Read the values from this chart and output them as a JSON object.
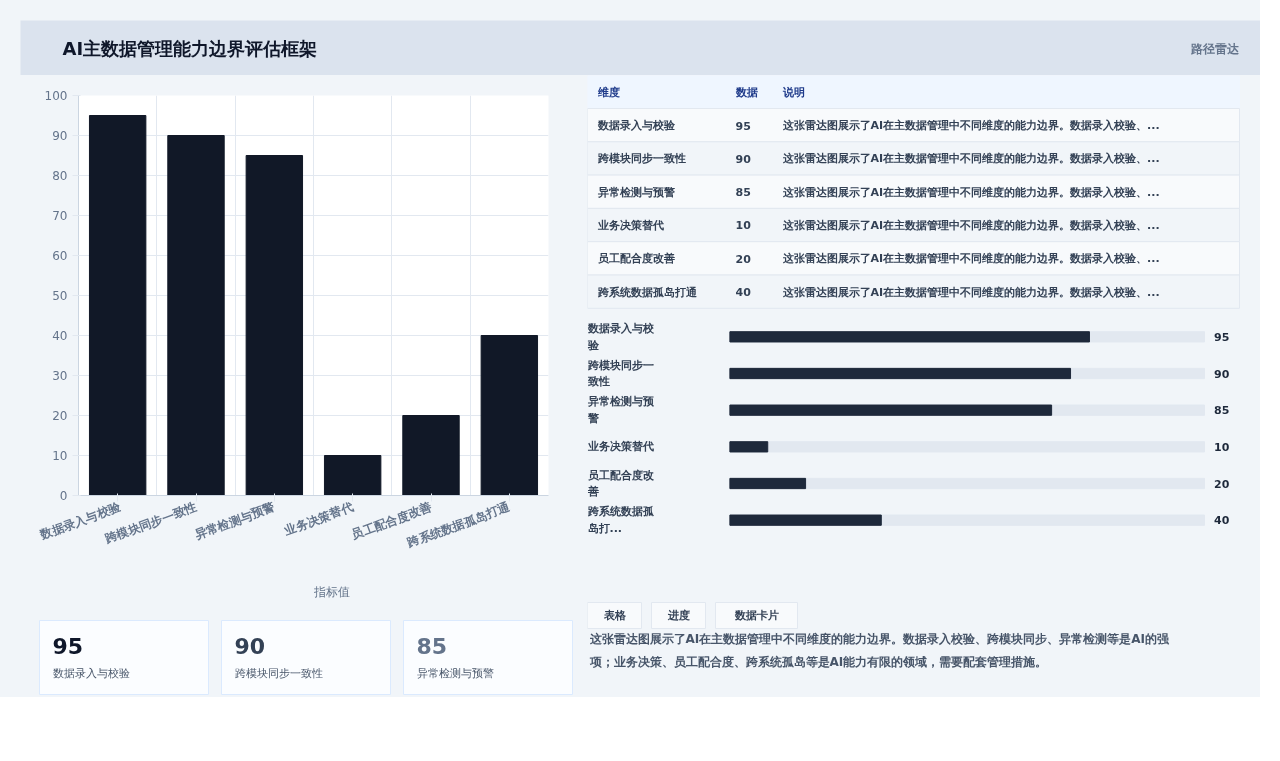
{
  "chart_data": [
    {
      "type": "other",
      "title": "AI主数据管理能力边界评估框架",
      "subtitle": "路径雷达"
    },
    {
      "type": "bar",
      "categories": [
        "数据录入与校验",
        "跨模块同步一致性",
        "异常检测与预警",
        "业务决策替代",
        "员工配合度改善",
        "跨系统数据孤岛打通"
      ],
      "series": [
        {
          "name": "指标值",
          "color": "#111827",
          "values": [
            95,
            90,
            85,
            10,
            20,
            40
          ]
        }
      ],
      "ylim": [
        0,
        100
      ],
      "yticks": [
        0,
        10,
        20,
        30,
        40,
        50,
        60,
        70,
        80,
        90,
        100
      ],
      "grid": true,
      "legend": "bottom"
    },
    {
      "type": "other",
      "categories": [
        "数据录入与校验",
        "跨模块同步一致性",
        "异常检测与预警",
        "业务决策替代",
        "员工配合度改善",
        "跨系统数据孤岛打通"
      ],
      "values": [
        95,
        90,
        85,
        10,
        20,
        40
      ],
      "data_labels": true,
      "annotations": [
        "维度",
        "数据",
        "说明",
        "这张雷达图展示了AI在主数据管理中不同维度的能力边界。数据录入校验、...",
        "这张雷达图展示了AI在主数据管理中不同维度的能力边界。数据录入校验、...",
        "这张雷达图展示了AI在主数据管理中不同维度的能力边界。数据录入校验、...",
        "这张雷达图展示了AI在主数据管理中不同维度的能力边界。数据录入校验、...",
        "这张雷达图展示了AI在主数据管理中不同维度的能力边界。数据录入校验、...",
        "这张雷达图展示了AI在主数据管理中不同维度的能力边界。数据录入校验、..."
      ]
    },
    {
      "type": "bar",
      "orientation": "horizontal",
      "categories": [
        "数据录入与校验",
        "跨模块同步一致性",
        "异常检测与预警",
        "业务决策替代",
        "员工配合度改善",
        "跨系统数据孤岛打..."
      ],
      "values": [
        95,
        90,
        85,
        10,
        20,
        40
      ],
      "color": "#1e293b",
      "data_labels": true
    },
    {
      "type": "other",
      "categories": [
        "数据录入与校验",
        "跨模块同步一致性",
        "异常检测与预警"
      ],
      "values": [
        95,
        90,
        85
      ],
      "data_labels": true
    },
    {
      "type": "other",
      "annotations": [
        "表格",
        "进度",
        "数据卡片",
        "这张雷达图展示了AI在主数据管理中不同维度的能力边界。数据录入校验、跨模块同步、异常检测等是AI的强项；业务决策、员工配合度、跨系统孤岛等是AI能力有限的领域，需要配套管理措施。"
      ]
    }
  ]
}
